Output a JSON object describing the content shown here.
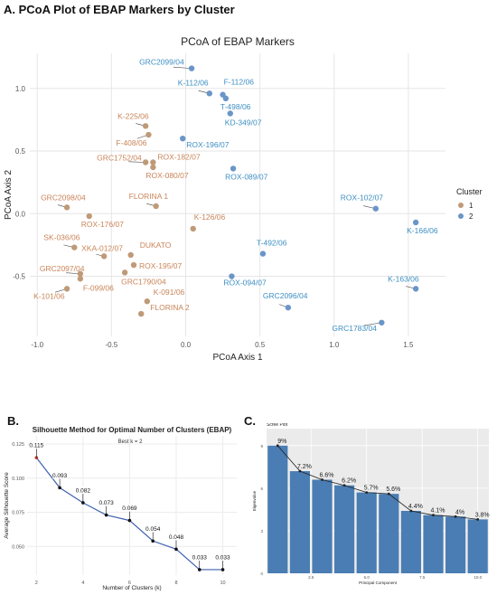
{
  "panel_a": {
    "heading": "A. PCoA Plot of EBAP Markers by Cluster"
  },
  "panel_b": {
    "heading": "B."
  },
  "panel_c": {
    "heading": "C."
  },
  "colors": {
    "cluster1": "#bf9a78",
    "cluster2": "#6b95c8",
    "label1": "#c98458",
    "label2": "#3e8fc2",
    "bar": "#4a7db3",
    "panel_bg": "#ebebeb",
    "sil_line": "#4060b0",
    "sil_point": "#c0392b"
  },
  "chart_data": [
    {
      "type": "scatter",
      "title": "PCoA of EBAP Markers",
      "xlabel": "PCoA Axis 1",
      "ylabel": "PCoA Axis 2",
      "xlim": [
        -1.05,
        1.75
      ],
      "ylim": [
        -0.98,
        1.28
      ],
      "xticks": [
        -1.0,
        -0.5,
        0.0,
        0.5,
        1.0,
        1.5
      ],
      "xtick_labels": [
        "-1.0",
        "-0.5",
        "0.0",
        "0.5",
        "1.0",
        "1.5"
      ],
      "yticks": [
        -0.5,
        0.0,
        0.5,
        1.0
      ],
      "ytick_labels": [
        "-0.5",
        "0.0",
        "0.5",
        "1.0"
      ],
      "grid": true,
      "legend": {
        "title": "Cluster",
        "position": "right",
        "entries": [
          "1",
          "2"
        ]
      },
      "points": [
        {
          "label": "GRC2099/04",
          "x": 0.04,
          "y": 1.16,
          "cluster": 2,
          "dx": -58,
          "dy": -4
        },
        {
          "label": "K-112/06",
          "x": 0.16,
          "y": 0.96,
          "cluster": 2,
          "dx": -35,
          "dy": -9
        },
        {
          "label": "F-112/06",
          "x": 0.25,
          "y": 0.95,
          "cluster": 2,
          "dx": 1,
          "dy": -11
        },
        {
          "label": "T-498/06",
          "x": 0.27,
          "y": 0.92,
          "cluster": 2,
          "dx": -6,
          "dy": 12
        },
        {
          "label": "KD-349/07",
          "x": 0.3,
          "y": 0.8,
          "cluster": 2,
          "dx": -6,
          "dy": 13
        },
        {
          "label": "K-225/06",
          "x": -0.27,
          "y": 0.7,
          "cluster": 1,
          "dx": -31,
          "dy": -8
        },
        {
          "label": "F-408/06",
          "x": -0.25,
          "y": 0.63,
          "cluster": 1,
          "dx": -36,
          "dy": 12
        },
        {
          "label": "ROX-196/07",
          "x": -0.02,
          "y": 0.6,
          "cluster": 2,
          "dx": 4,
          "dy": 10
        },
        {
          "label": "GRC1752/04",
          "x": -0.27,
          "y": 0.41,
          "cluster": 1,
          "dx": -54,
          "dy": -2
        },
        {
          "label": "ROX-182/07",
          "x": -0.22,
          "y": 0.41,
          "cluster": 1,
          "dx": 5,
          "dy": -3
        },
        {
          "label": "ROX-080/07",
          "x": -0.22,
          "y": 0.37,
          "cluster": 1,
          "dx": -8,
          "dy": 12
        },
        {
          "label": "ROX-089/07",
          "x": 0.32,
          "y": 0.36,
          "cluster": 2,
          "dx": -9,
          "dy": 12
        },
        {
          "label": "FLORINA 1",
          "x": -0.2,
          "y": 0.06,
          "cluster": 1,
          "dx": -30,
          "dy": -8
        },
        {
          "label": "GRC2098/04",
          "x": -0.8,
          "y": 0.05,
          "cluster": 1,
          "dx": -29,
          "dy": -8
        },
        {
          "label": "ROX-176/07",
          "x": -0.65,
          "y": -0.02,
          "cluster": 1,
          "dx": -9,
          "dy": 12
        },
        {
          "label": "ROX-102/07",
          "x": 1.28,
          "y": 0.04,
          "cluster": 2,
          "dx": -39,
          "dy": -9
        },
        {
          "label": "K-126/06",
          "x": 0.05,
          "y": -0.12,
          "cluster": 1,
          "dx": 1,
          "dy": -10
        },
        {
          "label": "K-166/06",
          "x": 1.55,
          "y": -0.07,
          "cluster": 2,
          "dx": -10,
          "dy": 12
        },
        {
          "label": "SK-036/06",
          "x": -0.75,
          "y": -0.27,
          "cluster": 1,
          "dx": -34,
          "dy": -8
        },
        {
          "label": "XKA-012/07",
          "x": -0.55,
          "y": -0.34,
          "cluster": 1,
          "dx": -25,
          "dy": -6
        },
        {
          "label": "DUKATO",
          "x": -0.37,
          "y": -0.33,
          "cluster": 1,
          "dx": 10,
          "dy": -8
        },
        {
          "label": "T-492/06",
          "x": 0.52,
          "y": -0.32,
          "cluster": 2,
          "dx": -7,
          "dy": -9
        },
        {
          "label": "ROX-195/07",
          "x": -0.35,
          "y": -0.41,
          "cluster": 1,
          "dx": 6,
          "dy": 4
        },
        {
          "label": "GRC1790/04",
          "x": -0.41,
          "y": -0.47,
          "cluster": 1,
          "dx": -4,
          "dy": 13
        },
        {
          "label": "GRC2097/04",
          "x": -0.71,
          "y": -0.48,
          "cluster": 1,
          "dx": -45,
          "dy": -3
        },
        {
          "label": "F-099/06",
          "x": -0.71,
          "y": -0.52,
          "cluster": 1,
          "dx": 3,
          "dy": 13
        },
        {
          "label": "ROX-094/07",
          "x": 0.31,
          "y": -0.5,
          "cluster": 2,
          "dx": -9,
          "dy": 10
        },
        {
          "label": "K-163/06",
          "x": 1.55,
          "y": -0.6,
          "cluster": 2,
          "dx": -31,
          "dy": -8
        },
        {
          "label": "K-101/06",
          "x": -0.8,
          "y": -0.6,
          "cluster": 1,
          "dx": -37,
          "dy": 11
        },
        {
          "label": "K-091/06",
          "x": -0.26,
          "y": -0.7,
          "cluster": 1,
          "dx": 7,
          "dy": -7
        },
        {
          "label": "GRC2096/04",
          "x": 0.69,
          "y": -0.75,
          "cluster": 2,
          "dx": -28,
          "dy": -10
        },
        {
          "label": "FLORINA 2",
          "x": -0.3,
          "y": -0.8,
          "cluster": 1,
          "dx": 10,
          "dy": -4
        },
        {
          "label": "GRC1783/04",
          "x": 1.32,
          "y": -0.87,
          "cluster": 2,
          "dx": -55,
          "dy": 9
        }
      ]
    },
    {
      "type": "line",
      "title": "Silhouette Method for Optimal Number of Clusters (EBAP)",
      "subtitle": "Best k = 2",
      "xlabel": "Number of Clusters (k)",
      "ylabel": "Average Silhouette Score",
      "x": [
        2,
        3,
        4,
        5,
        6,
        7,
        8,
        9,
        10
      ],
      "values": [
        0.115,
        0.093,
        0.082,
        0.073,
        0.069,
        0.054,
        0.048,
        0.033,
        0.033
      ],
      "point_labels": [
        "0.115",
        "0.093",
        "0.082",
        "0.073",
        "0.069",
        "0.054",
        "0.048",
        "0.033",
        "0.033"
      ],
      "xlim": [
        1.6,
        10.6
      ],
      "ylim": [
        0.029,
        0.131
      ],
      "xticks": [
        2,
        4,
        6,
        8,
        10
      ],
      "xtick_labels": [
        "2",
        "4",
        "6",
        "8",
        "10"
      ],
      "yticks": [
        0.05,
        0.075,
        0.1,
        0.125
      ],
      "ytick_labels": [
        "0.050",
        "0.075",
        "0.100",
        "0.125"
      ],
      "grid": true
    },
    {
      "type": "bar",
      "title": "Scree Plot",
      "xlabel": "Principal Component",
      "ylabel": "Eigenvalue",
      "categories": [
        "1",
        "2",
        "3",
        "4",
        "5",
        "6",
        "7",
        "8",
        "9",
        "10"
      ],
      "values": [
        9.0,
        7.2,
        6.6,
        6.2,
        5.7,
        5.6,
        4.4,
        4.1,
        4.0,
        3.8
      ],
      "value_labels": [
        "9%",
        "7.2%",
        "6.6%",
        "6.2%",
        "5.7%",
        "5.6%",
        "4.4%",
        "4.1%",
        "4%",
        "3.8%"
      ],
      "xtick_labels": [
        "2.5",
        "5.0",
        "7.5",
        "10.0"
      ],
      "xtick_positions": [
        2.5,
        5.0,
        7.5,
        10.0
      ],
      "ytick_labels": [
        "0",
        "3",
        "6",
        "9"
      ],
      "yticks": [
        0,
        3,
        6,
        9
      ],
      "ylim": [
        0,
        10.2
      ],
      "grid": true
    }
  ]
}
